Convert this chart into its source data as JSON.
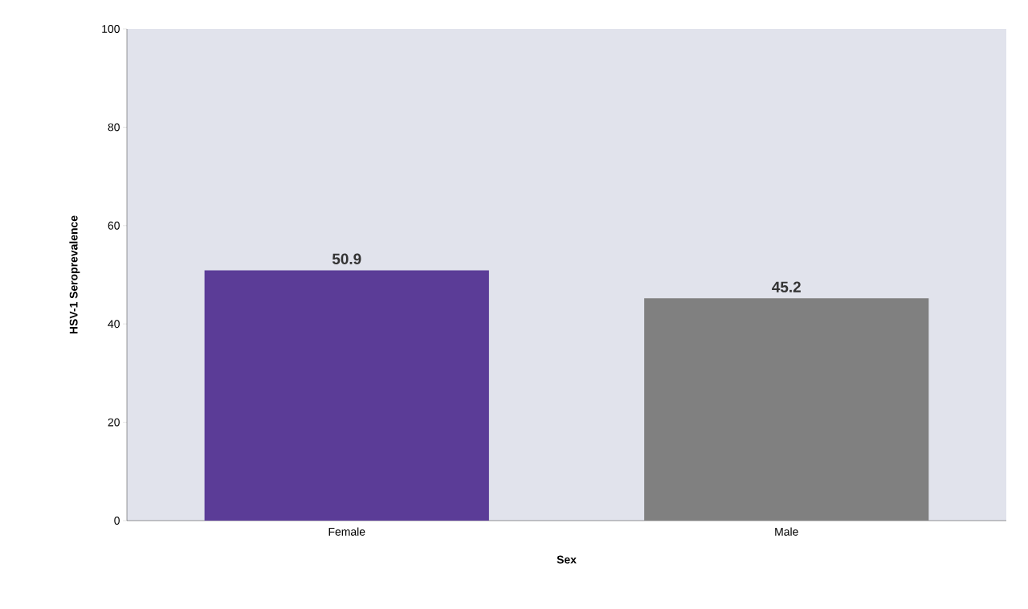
{
  "chart_data": {
    "type": "bar",
    "xlabel": "Sex",
    "ylabel": "HSV-1 Seroprevalence",
    "categories": [
      "Female",
      "Male"
    ],
    "values": [
      50.9,
      45.2
    ],
    "colors": [
      "#5b3c97",
      "#808080"
    ],
    "ylim": [
      0,
      100
    ],
    "yticks": [
      0,
      20,
      40,
      60,
      80,
      100
    ],
    "data_labels": true,
    "grid": false
  }
}
